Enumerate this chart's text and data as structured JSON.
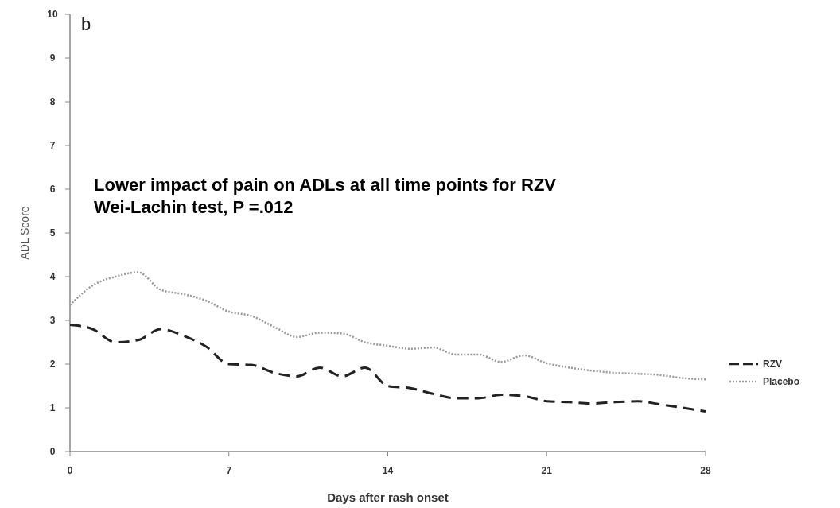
{
  "chart_data": {
    "type": "line",
    "title": "b",
    "xlabel": "Days after rash onset",
    "ylabel": "ADL Score",
    "annotations": [
      "Lower impact of pain on ADLs at all time points for RZV",
      "Wei-Lachin test, P =.012"
    ],
    "x": [
      0,
      1,
      2,
      3,
      4,
      5,
      6,
      7,
      8,
      9,
      10,
      11,
      12,
      13,
      14,
      15,
      16,
      17,
      18,
      19,
      20,
      21,
      22,
      23,
      24,
      25,
      26,
      27,
      28
    ],
    "series": [
      {
        "name": "RZV",
        "color": "#222222",
        "line_style": "dashed",
        "values": [
          2.9,
          2.8,
          2.5,
          2.55,
          2.8,
          2.65,
          2.4,
          2.0,
          1.98,
          1.8,
          1.72,
          1.92,
          1.72,
          1.92,
          1.5,
          1.45,
          1.32,
          1.22,
          1.22,
          1.3,
          1.27,
          1.15,
          1.13,
          1.1,
          1.13,
          1.15,
          1.08,
          1.0,
          0.92
        ]
      },
      {
        "name": "Placebo",
        "color": "#999999",
        "line_style": "dotted",
        "values": [
          3.35,
          3.8,
          4.0,
          4.1,
          3.7,
          3.6,
          3.45,
          3.2,
          3.1,
          2.85,
          2.62,
          2.72,
          2.7,
          2.5,
          2.42,
          2.35,
          2.38,
          2.22,
          2.22,
          2.05,
          2.2,
          2.02,
          1.92,
          1.85,
          1.8,
          1.78,
          1.75,
          1.68,
          1.65
        ]
      }
    ],
    "xlim": [
      0,
      28
    ],
    "xticks": [
      0,
      7,
      14,
      21,
      28
    ],
    "ylim": [
      0,
      10
    ],
    "yticks": [
      0,
      1,
      2,
      3,
      4,
      5,
      6,
      7,
      8,
      9,
      10
    ],
    "grid": false,
    "legend": "right",
    "marker": "none"
  }
}
